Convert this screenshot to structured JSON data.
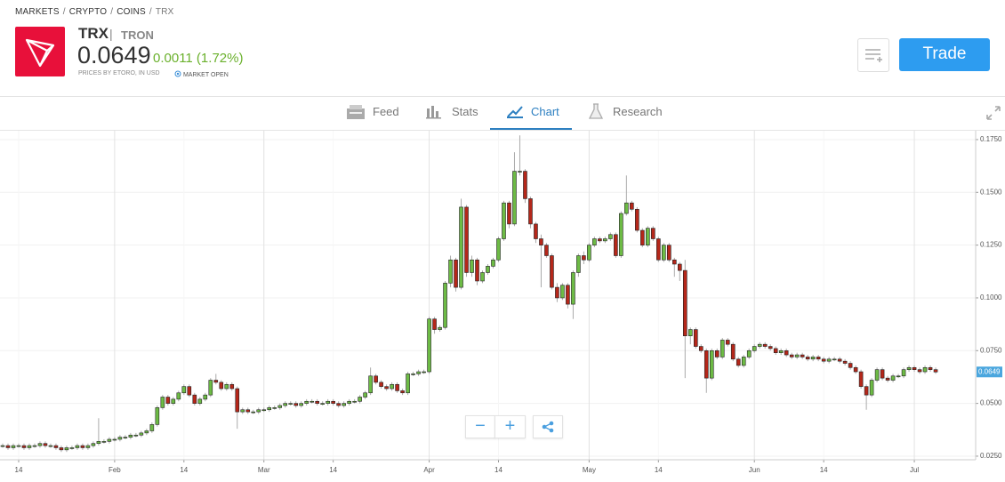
{
  "breadcrumbs": [
    "MARKETS",
    "CRYPTO",
    "COINS",
    "TRX"
  ],
  "header": {
    "symbol": "TRX",
    "name": "TRON",
    "price": "0.0649",
    "change": "0.0011 (1.72%)",
    "source_note": "PRICES BY ETORO, IN USD",
    "market_status": "MARKET OPEN",
    "trade_button": "Trade"
  },
  "tabs": [
    "Feed",
    "Stats",
    "Chart",
    "Research"
  ],
  "zoom": {
    "out": "−",
    "in": "+"
  },
  "chart_data": {
    "type": "candlestick",
    "up_color": "#6dbb45",
    "down_color": "#b5271a",
    "outline_color": "#222222",
    "grid": true,
    "xlim": [
      -0.5,
      182.5
    ],
    "xticks": [
      {
        "value": 3,
        "label": "14"
      },
      {
        "value": 21,
        "label": "Feb"
      },
      {
        "value": 34,
        "label": "14"
      },
      {
        "value": 49,
        "label": "Mar"
      },
      {
        "value": 62,
        "label": "14"
      },
      {
        "value": 80,
        "label": "Apr"
      },
      {
        "value": 93,
        "label": "14"
      },
      {
        "value": 110,
        "label": "May"
      },
      {
        "value": 123,
        "label": "14"
      },
      {
        "value": 141,
        "label": "Jun"
      },
      {
        "value": 154,
        "label": "14"
      },
      {
        "value": 171,
        "label": "Jul"
      }
    ],
    "ylim": [
      0.0233,
      0.1792
    ],
    "yticks": [
      {
        "value": 0.175,
        "label": "0.1750"
      },
      {
        "value": 0.15,
        "label": "0.1500"
      },
      {
        "value": 0.125,
        "label": "0.1250"
      },
      {
        "value": 0.1,
        "label": "0.1000"
      },
      {
        "value": 0.075,
        "label": "0.0750"
      },
      {
        "value": 0.05,
        "label": "0.0500"
      },
      {
        "value": 0.025,
        "label": "0.0250"
      }
    ],
    "open": [
      0.03,
      0.03,
      0.029,
      0.03,
      0.03,
      0.029,
      0.03,
      0.03,
      0.031,
      0.03,
      0.03,
      0.029,
      0.028,
      0.029,
      0.029,
      0.03,
      0.029,
      0.03,
      0.031,
      0.032,
      0.032,
      0.033,
      0.033,
      0.034,
      0.034,
      0.035,
      0.035,
      0.036,
      0.037,
      0.04,
      0.048,
      0.053,
      0.05,
      0.052,
      0.055,
      0.058,
      0.054,
      0.05,
      0.052,
      0.054,
      0.061,
      0.06,
      0.057,
      0.059,
      0.057,
      0.046,
      0.047,
      0.046,
      0.046,
      0.047,
      0.047,
      0.048,
      0.048,
      0.049,
      0.05,
      0.05,
      0.049,
      0.05,
      0.051,
      0.051,
      0.05,
      0.05,
      0.051,
      0.05,
      0.049,
      0.05,
      0.051,
      0.051,
      0.053,
      0.055,
      0.063,
      0.06,
      0.058,
      0.057,
      0.059,
      0.056,
      0.055,
      0.064,
      0.064,
      0.065,
      0.065,
      0.09,
      0.085,
      0.086,
      0.107,
      0.118,
      0.105,
      0.143,
      0.112,
      0.118,
      0.108,
      0.112,
      0.115,
      0.118,
      0.128,
      0.145,
      0.135,
      0.16,
      0.16,
      0.147,
      0.135,
      0.128,
      0.125,
      0.12,
      0.105,
      0.1,
      0.106,
      0.097,
      0.112,
      0.12,
      0.118,
      0.125,
      0.128,
      0.127,
      0.128,
      0.13,
      0.12,
      0.14,
      0.145,
      0.142,
      0.132,
      0.125,
      0.133,
      0.128,
      0.118,
      0.125,
      0.118,
      0.116,
      0.113,
      0.082,
      0.085,
      0.077,
      0.075,
      0.062,
      0.075,
      0.072,
      0.08,
      0.078,
      0.071,
      0.068,
      0.072,
      0.075,
      0.077,
      0.078,
      0.077,
      0.076,
      0.074,
      0.075,
      0.073,
      0.072,
      0.073,
      0.072,
      0.071,
      0.072,
      0.071,
      0.07,
      0.071,
      0.071,
      0.07,
      0.069,
      0.067,
      0.065,
      0.058,
      0.054,
      0.061,
      0.066,
      0.062,
      0.061,
      0.063,
      0.063,
      0.066,
      0.067,
      0.066,
      0.065,
      0.067,
      0.066
    ],
    "high": [
      0.031,
      0.031,
      0.031,
      0.031,
      0.031,
      0.031,
      0.031,
      0.032,
      0.032,
      0.031,
      0.031,
      0.03,
      0.03,
      0.03,
      0.031,
      0.031,
      0.031,
      0.032,
      0.043,
      0.033,
      0.034,
      0.034,
      0.035,
      0.035,
      0.036,
      0.036,
      0.037,
      0.038,
      0.041,
      0.049,
      0.054,
      0.054,
      0.053,
      0.056,
      0.059,
      0.059,
      0.055,
      0.053,
      0.055,
      0.062,
      0.064,
      0.061,
      0.06,
      0.06,
      0.058,
      0.048,
      0.048,
      0.047,
      0.048,
      0.048,
      0.049,
      0.049,
      0.05,
      0.051,
      0.051,
      0.051,
      0.051,
      0.052,
      0.052,
      0.052,
      0.051,
      0.052,
      0.052,
      0.051,
      0.051,
      0.052,
      0.052,
      0.054,
      0.056,
      0.067,
      0.064,
      0.061,
      0.059,
      0.06,
      0.06,
      0.057,
      0.065,
      0.065,
      0.066,
      0.066,
      0.091,
      0.091,
      0.087,
      0.108,
      0.12,
      0.119,
      0.147,
      0.144,
      0.12,
      0.119,
      0.113,
      0.116,
      0.119,
      0.129,
      0.146,
      0.146,
      0.169,
      0.177,
      0.161,
      0.148,
      0.136,
      0.13,
      0.126,
      0.121,
      0.107,
      0.107,
      0.107,
      0.113,
      0.121,
      0.122,
      0.126,
      0.129,
      0.129,
      0.129,
      0.131,
      0.131,
      0.141,
      0.158,
      0.146,
      0.143,
      0.133,
      0.134,
      0.134,
      0.129,
      0.126,
      0.126,
      0.119,
      0.117,
      0.118,
      0.086,
      0.086,
      0.078,
      0.076,
      0.076,
      0.076,
      0.081,
      0.081,
      0.079,
      0.072,
      0.073,
      0.076,
      0.078,
      0.079,
      0.079,
      0.078,
      0.077,
      0.076,
      0.076,
      0.074,
      0.074,
      0.074,
      0.073,
      0.073,
      0.073,
      0.072,
      0.072,
      0.072,
      0.072,
      0.071,
      0.07,
      0.068,
      0.066,
      0.059,
      0.062,
      0.067,
      0.067,
      0.063,
      0.064,
      0.064,
      0.067,
      0.068,
      0.068,
      0.067,
      0.068,
      0.068,
      0.067
    ],
    "low": [
      0.029,
      0.028,
      0.028,
      0.029,
      0.028,
      0.028,
      0.029,
      0.029,
      0.029,
      0.029,
      0.028,
      0.027,
      0.027,
      0.028,
      0.028,
      0.028,
      0.028,
      0.029,
      0.03,
      0.031,
      0.031,
      0.032,
      0.032,
      0.033,
      0.033,
      0.034,
      0.034,
      0.035,
      0.036,
      0.039,
      0.047,
      0.049,
      0.049,
      0.051,
      0.054,
      0.053,
      0.049,
      0.049,
      0.051,
      0.053,
      0.059,
      0.056,
      0.056,
      0.056,
      0.038,
      0.045,
      0.045,
      0.045,
      0.045,
      0.046,
      0.046,
      0.047,
      0.047,
      0.048,
      0.049,
      0.048,
      0.048,
      0.049,
      0.05,
      0.049,
      0.049,
      0.049,
      0.049,
      0.048,
      0.048,
      0.049,
      0.05,
      0.05,
      0.052,
      0.054,
      0.059,
      0.057,
      0.056,
      0.056,
      0.055,
      0.054,
      0.054,
      0.063,
      0.063,
      0.064,
      0.064,
      0.083,
      0.084,
      0.085,
      0.105,
      0.103,
      0.104,
      0.11,
      0.11,
      0.106,
      0.107,
      0.111,
      0.114,
      0.117,
      0.127,
      0.133,
      0.134,
      0.158,
      0.145,
      0.133,
      0.126,
      0.105,
      0.119,
      0.104,
      0.098,
      0.099,
      0.095,
      0.09,
      0.11,
      0.116,
      0.117,
      0.124,
      0.126,
      0.126,
      0.127,
      0.119,
      0.119,
      0.139,
      0.141,
      0.131,
      0.124,
      0.124,
      0.127,
      0.117,
      0.117,
      0.117,
      0.11,
      0.108,
      0.062,
      0.078,
      0.076,
      0.074,
      0.055,
      0.061,
      0.071,
      0.071,
      0.077,
      0.07,
      0.067,
      0.067,
      0.071,
      0.074,
      0.076,
      0.076,
      0.075,
      0.073,
      0.073,
      0.072,
      0.071,
      0.071,
      0.071,
      0.07,
      0.07,
      0.07,
      0.069,
      0.069,
      0.07,
      0.069,
      0.068,
      0.066,
      0.064,
      0.057,
      0.047,
      0.053,
      0.06,
      0.061,
      0.06,
      0.06,
      0.062,
      0.062,
      0.065,
      0.065,
      0.064,
      0.064,
      0.065,
      0.064
    ],
    "close": [
      0.03,
      0.029,
      0.03,
      0.03,
      0.029,
      0.03,
      0.03,
      0.031,
      0.03,
      0.03,
      0.029,
      0.028,
      0.029,
      0.029,
      0.03,
      0.029,
      0.03,
      0.031,
      0.032,
      0.032,
      0.033,
      0.033,
      0.034,
      0.034,
      0.035,
      0.035,
      0.036,
      0.037,
      0.04,
      0.048,
      0.053,
      0.05,
      0.052,
      0.055,
      0.058,
      0.054,
      0.05,
      0.052,
      0.054,
      0.061,
      0.06,
      0.057,
      0.059,
      0.057,
      0.046,
      0.047,
      0.046,
      0.046,
      0.047,
      0.047,
      0.048,
      0.048,
      0.049,
      0.05,
      0.05,
      0.049,
      0.05,
      0.051,
      0.051,
      0.05,
      0.05,
      0.051,
      0.05,
      0.049,
      0.05,
      0.051,
      0.051,
      0.053,
      0.055,
      0.063,
      0.06,
      0.058,
      0.057,
      0.059,
      0.056,
      0.055,
      0.064,
      0.064,
      0.065,
      0.065,
      0.09,
      0.085,
      0.086,
      0.107,
      0.118,
      0.105,
      0.143,
      0.112,
      0.118,
      0.108,
      0.112,
      0.115,
      0.118,
      0.128,
      0.145,
      0.135,
      0.16,
      0.16,
      0.147,
      0.135,
      0.128,
      0.125,
      0.12,
      0.105,
      0.1,
      0.106,
      0.097,
      0.112,
      0.12,
      0.118,
      0.125,
      0.128,
      0.127,
      0.128,
      0.13,
      0.12,
      0.14,
      0.145,
      0.142,
      0.132,
      0.125,
      0.133,
      0.128,
      0.118,
      0.125,
      0.118,
      0.116,
      0.113,
      0.082,
      0.085,
      0.077,
      0.075,
      0.062,
      0.075,
      0.072,
      0.08,
      0.078,
      0.071,
      0.068,
      0.072,
      0.075,
      0.077,
      0.078,
      0.077,
      0.076,
      0.074,
      0.075,
      0.073,
      0.072,
      0.073,
      0.072,
      0.071,
      0.072,
      0.071,
      0.07,
      0.071,
      0.071,
      0.07,
      0.069,
      0.067,
      0.065,
      0.058,
      0.054,
      0.061,
      0.066,
      0.062,
      0.061,
      0.063,
      0.063,
      0.066,
      0.067,
      0.066,
      0.065,
      0.067,
      0.066,
      0.0649
    ]
  }
}
